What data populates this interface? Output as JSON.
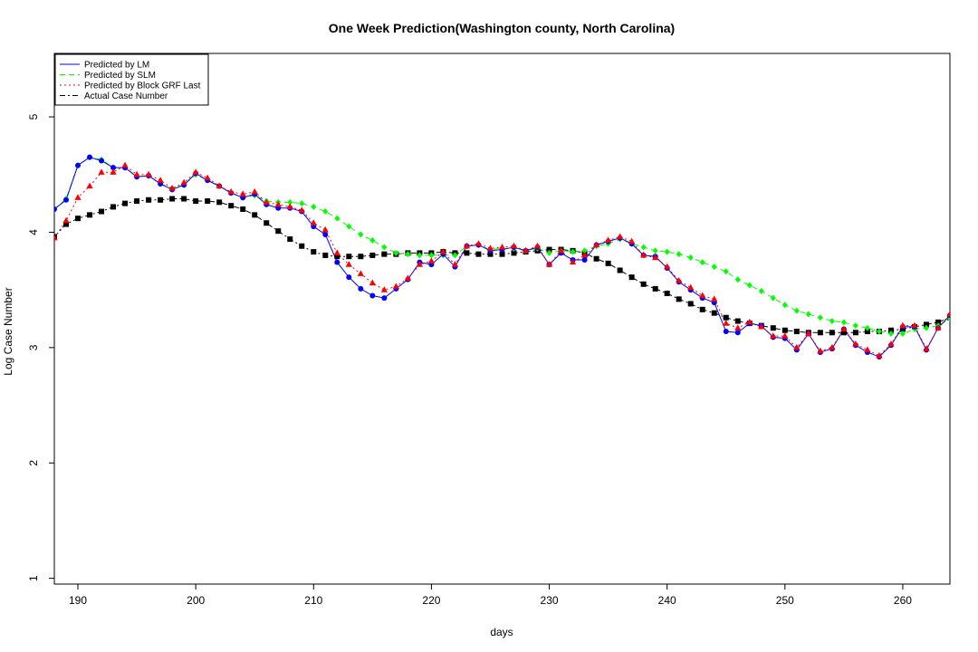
{
  "chart_data": {
    "type": "line",
    "title": "One Week Prediction(Washington county, North Carolina)",
    "xlabel": "days",
    "ylabel": "Log Case Number",
    "xlim": [
      188,
      264
    ],
    "ylim": [
      0.95,
      5.55
    ],
    "xticks": [
      190,
      200,
      210,
      220,
      230,
      240,
      250,
      260
    ],
    "yticks": [
      1,
      2,
      3,
      4,
      5
    ],
    "x_start": 188,
    "legend_position": "top-left",
    "grid": false,
    "series": [
      {
        "name": "Predicted by LM",
        "color": "#0000ff",
        "dash": "solid",
        "marker": "circle",
        "values": [
          4.2,
          4.28,
          4.58,
          4.65,
          4.62,
          4.56,
          4.56,
          4.48,
          4.49,
          4.42,
          4.37,
          4.41,
          4.51,
          4.45,
          4.4,
          4.34,
          4.3,
          4.33,
          4.24,
          4.21,
          4.21,
          4.18,
          4.05,
          3.98,
          3.74,
          3.61,
          3.51,
          3.45,
          3.43,
          3.51,
          3.59,
          3.74,
          3.72,
          3.81,
          3.7,
          3.88,
          3.89,
          3.84,
          3.85,
          3.87,
          3.84,
          3.87,
          3.72,
          3.82,
          3.76,
          3.76,
          3.89,
          3.92,
          3.95,
          3.9,
          3.8,
          3.79,
          3.69,
          3.57,
          3.5,
          3.43,
          3.39,
          3.14,
          3.13,
          3.21,
          3.19,
          3.09,
          3.08,
          2.98,
          3.12,
          2.96,
          2.99,
          3.16,
          3.02,
          2.96,
          2.92,
          3.02,
          3.18,
          3.18,
          2.98,
          3.17,
          3.28
        ]
      },
      {
        "name": "Predicted by SLM",
        "color": "#00ff00",
        "dash": "dashed",
        "marker": "diamond",
        "values": [
          4.2,
          4.29,
          4.58,
          4.65,
          4.63,
          4.56,
          4.56,
          4.48,
          4.49,
          4.42,
          4.38,
          4.41,
          4.5,
          4.45,
          4.4,
          4.34,
          4.3,
          4.32,
          4.27,
          4.26,
          4.26,
          4.25,
          4.22,
          4.18,
          4.12,
          4.05,
          3.98,
          3.93,
          3.87,
          3.82,
          3.81,
          3.8,
          3.8,
          3.8,
          3.8,
          3.88,
          3.89,
          3.85,
          3.86,
          3.86,
          3.84,
          3.86,
          3.82,
          3.84,
          3.83,
          3.84,
          3.88,
          3.9,
          3.94,
          3.9,
          3.87,
          3.84,
          3.83,
          3.81,
          3.78,
          3.74,
          3.7,
          3.66,
          3.59,
          3.54,
          3.49,
          3.43,
          3.37,
          3.32,
          3.29,
          3.26,
          3.23,
          3.22,
          3.19,
          3.17,
          3.14,
          3.12,
          3.12,
          3.16,
          3.17,
          3.19,
          3.25
        ]
      },
      {
        "name": "Predicted by Block GRF Last",
        "color": "#ff0000",
        "dash": "dotted",
        "marker": "triangle",
        "values": [
          3.95,
          4.1,
          4.3,
          4.4,
          4.52,
          4.52,
          4.58,
          4.5,
          4.5,
          4.45,
          4.38,
          4.43,
          4.52,
          4.47,
          4.4,
          4.35,
          4.33,
          4.35,
          4.26,
          4.24,
          4.22,
          4.19,
          4.08,
          4.02,
          3.82,
          3.72,
          3.64,
          3.56,
          3.5,
          3.53,
          3.6,
          3.72,
          3.75,
          3.83,
          3.72,
          3.88,
          3.9,
          3.86,
          3.87,
          3.88,
          3.84,
          3.88,
          3.72,
          3.84,
          3.74,
          3.8,
          3.89,
          3.93,
          3.96,
          3.92,
          3.8,
          3.78,
          3.7,
          3.58,
          3.52,
          3.45,
          3.42,
          3.21,
          3.17,
          3.22,
          3.18,
          3.1,
          3.1,
          3.0,
          3.12,
          2.97,
          3.0,
          3.16,
          3.03,
          2.98,
          2.93,
          3.03,
          3.19,
          3.19,
          2.99,
          3.17,
          3.29
        ]
      },
      {
        "name": "Actual Case Number",
        "color": "#000000",
        "dash": "dashdot",
        "marker": "square",
        "values": [
          3.96,
          4.07,
          4.12,
          4.15,
          4.18,
          4.22,
          4.25,
          4.27,
          4.28,
          4.28,
          4.29,
          4.29,
          4.27,
          4.27,
          4.26,
          4.23,
          4.2,
          4.15,
          4.08,
          4.01,
          3.94,
          3.88,
          3.83,
          3.8,
          3.79,
          3.79,
          3.79,
          3.8,
          3.81,
          3.81,
          3.82,
          3.82,
          3.82,
          3.83,
          3.82,
          3.82,
          3.81,
          3.81,
          3.81,
          3.82,
          3.83,
          3.84,
          3.85,
          3.85,
          3.84,
          3.82,
          3.77,
          3.73,
          3.67,
          3.61,
          3.55,
          3.51,
          3.47,
          3.42,
          3.38,
          3.33,
          3.3,
          3.26,
          3.23,
          3.21,
          3.19,
          3.17,
          3.15,
          3.14,
          3.13,
          3.13,
          3.13,
          3.13,
          3.13,
          3.14,
          3.14,
          3.15,
          3.16,
          3.18,
          3.2,
          3.22,
          3.26
        ]
      }
    ]
  }
}
